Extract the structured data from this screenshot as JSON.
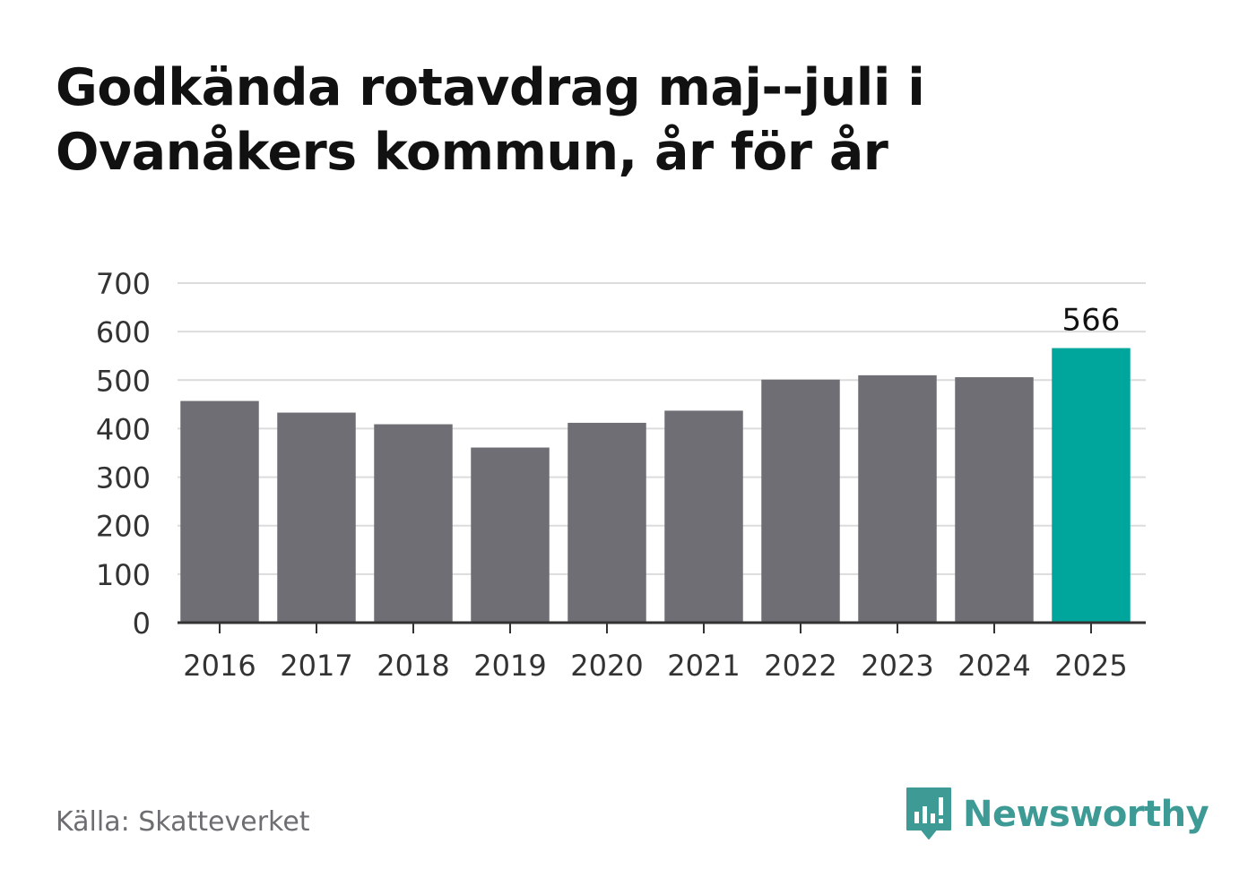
{
  "header": {
    "title_line1": "Godkända rotavdrag maj--juli i",
    "title_line2": "Ovanåkers kommun, år för år"
  },
  "footer": {
    "source": "Källa: Skatteverket",
    "brand": "Newsworthy",
    "brand_icon": "bar-chart-speech-bubble-icon"
  },
  "colors": {
    "bar": "#6f6e74",
    "highlight": "#00a59b",
    "grid": "#dcdcdc",
    "axis": "#333333",
    "brand": "#3d9a95"
  },
  "chart_data": {
    "type": "bar",
    "categories": [
      "2016",
      "2017",
      "2018",
      "2019",
      "2020",
      "2021",
      "2022",
      "2023",
      "2024",
      "2025"
    ],
    "values": [
      457,
      433,
      409,
      361,
      412,
      437,
      501,
      510,
      506,
      566
    ],
    "highlight_index": 9,
    "data_labels": [
      {
        "index": 9,
        "text": "566"
      }
    ],
    "ylim": [
      0,
      700
    ],
    "yticks": [
      0,
      100,
      200,
      300,
      400,
      500,
      600,
      700
    ],
    "xlabel": "",
    "ylabel": "",
    "grid": true,
    "legend": "none"
  }
}
